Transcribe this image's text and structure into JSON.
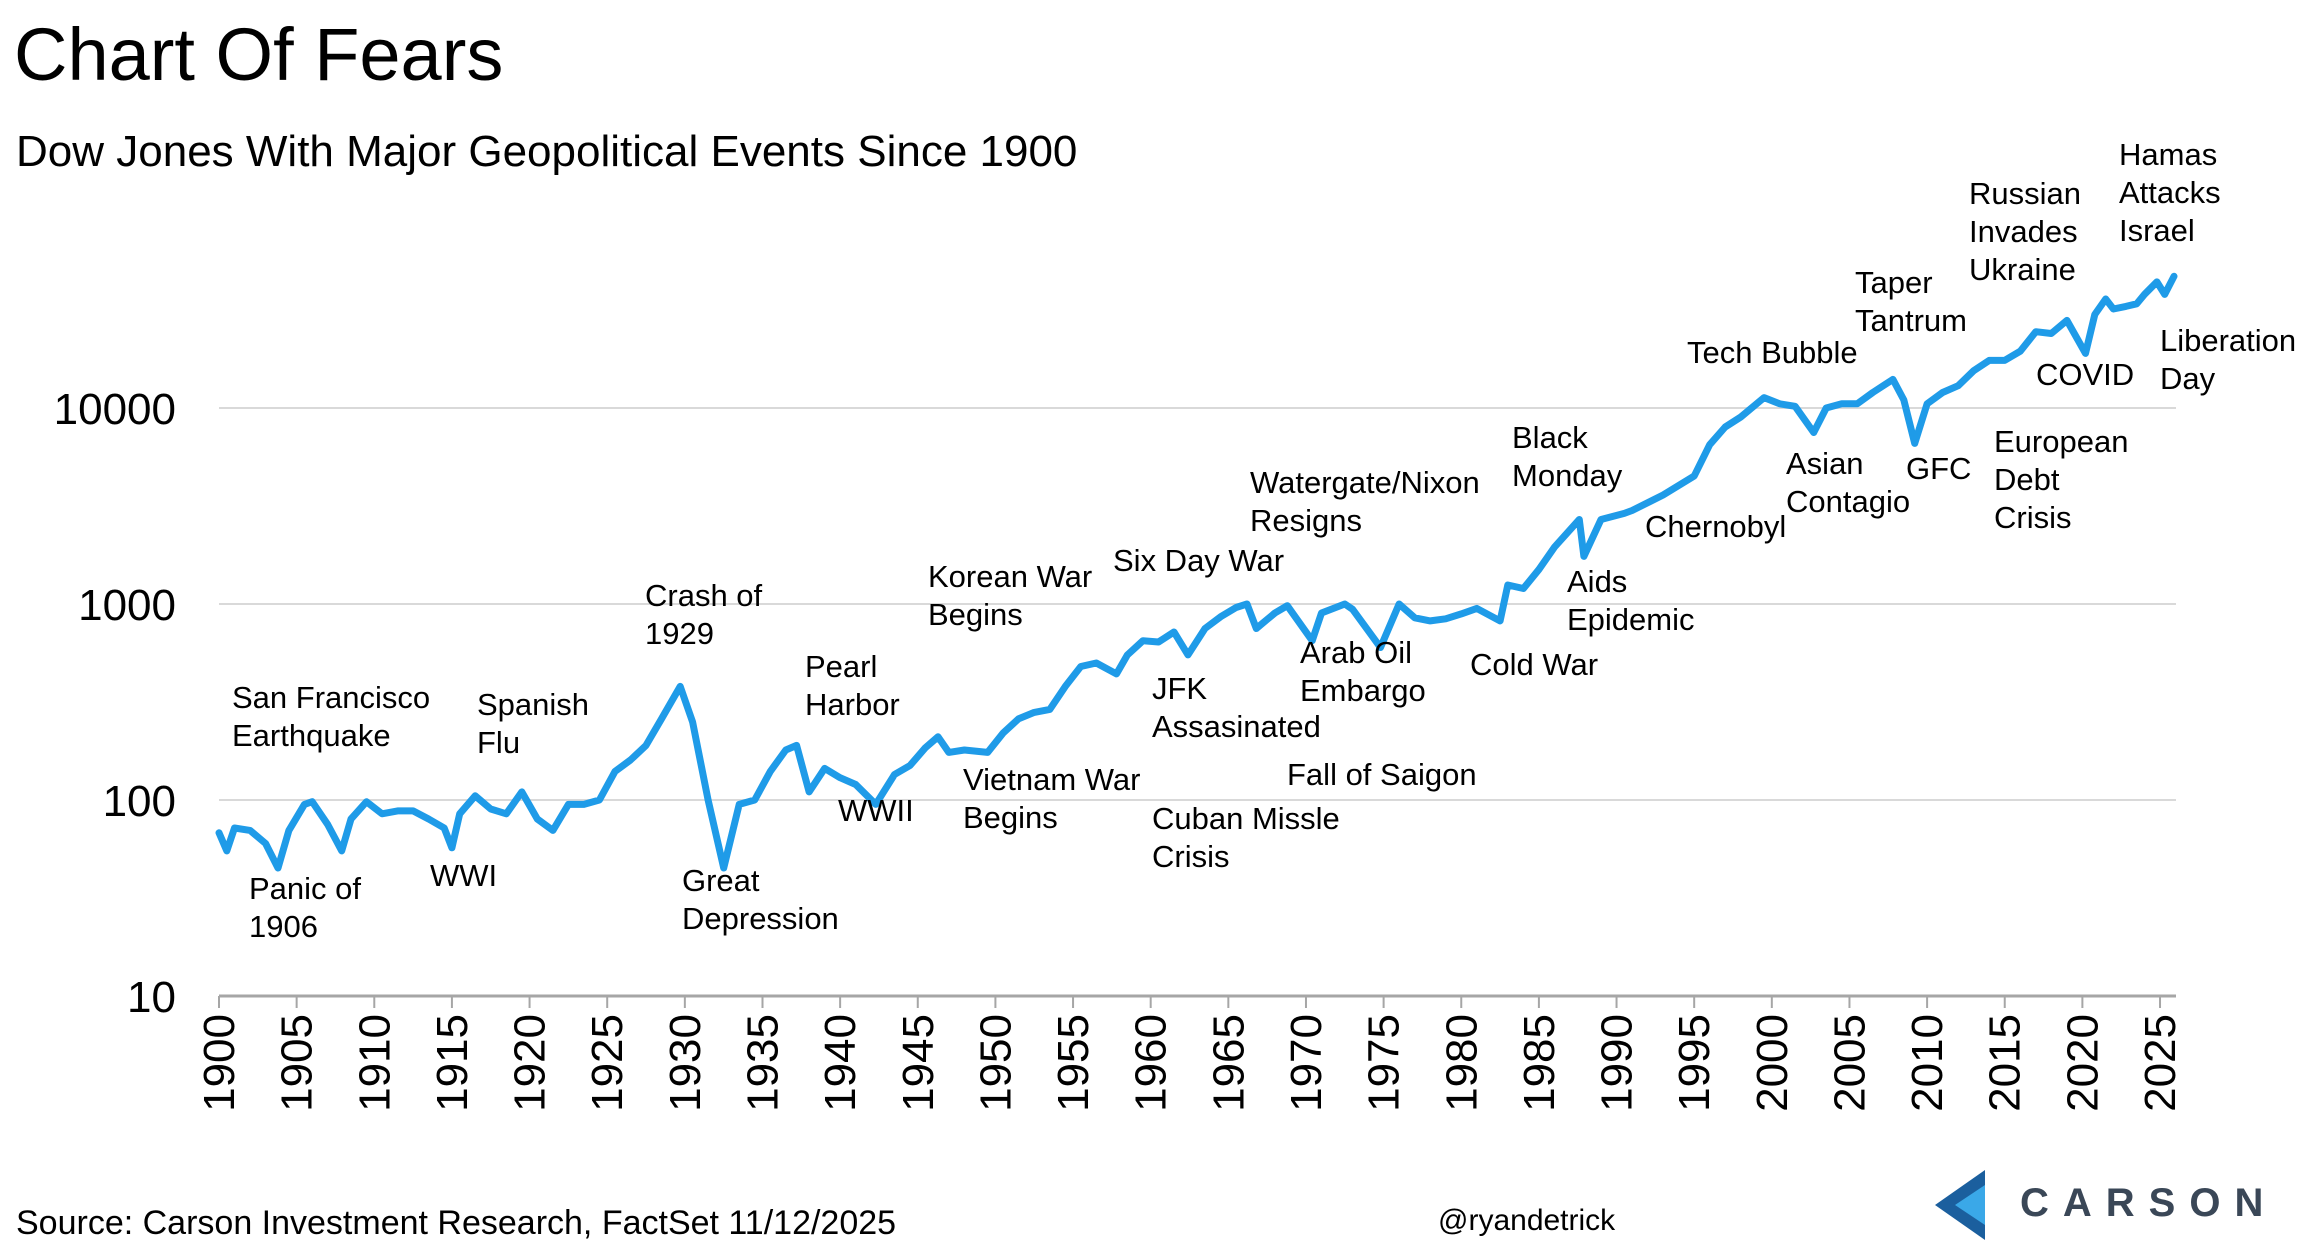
{
  "header": {
    "title": "Chart Of Fears",
    "subtitle": "Dow Jones With Major Geopolitical Events Since 1900"
  },
  "footer": {
    "source": "Source: Carson Investment Research, FactSet 11/12/2025",
    "handle": "@ryandetrick",
    "logo_text": "CARSON"
  },
  "colors": {
    "line": "#1f9be8",
    "grid": "#d9d9d9",
    "logo_dark": "#1b5f9e",
    "logo_light": "#3aa8e8"
  },
  "chart_data": {
    "type": "line",
    "title": "Chart Of Fears",
    "subtitle": "Dow Jones With Major Geopolitical Events Since 1900",
    "xlabel": "",
    "ylabel": "",
    "y_scale": "log",
    "xlim": [
      1900,
      2025.9
    ],
    "ylim": [
      10,
      50000
    ],
    "y_ticks": [
      10,
      100,
      1000,
      10000
    ],
    "y_tick_labels": [
      "10",
      "100",
      "1000",
      "10000"
    ],
    "x_ticks": [
      1900,
      1905,
      1910,
      1915,
      1920,
      1925,
      1930,
      1935,
      1940,
      1945,
      1950,
      1955,
      1960,
      1965,
      1970,
      1975,
      1980,
      1985,
      1990,
      1995,
      2000,
      2005,
      2010,
      2015,
      2020,
      2025
    ],
    "x_tick_labels": [
      "1900",
      "1905",
      "1910",
      "1915",
      "1920",
      "1925",
      "1930",
      "1935",
      "1940",
      "1945",
      "1950",
      "1955",
      "1960",
      "1965",
      "1970",
      "1975",
      "1980",
      "1985",
      "1990",
      "1995",
      "2000",
      "2005",
      "2010",
      "2015",
      "2020",
      "2025"
    ],
    "grid": "horizontal",
    "series": [
      {
        "name": "Dow Jones",
        "x": [
          1900,
          1900.5,
          1901,
          1902,
          1903,
          1903.8,
          1904.5,
          1905.5,
          1906,
          1907,
          1907.9,
          1908.5,
          1909.5,
          1910.5,
          1911.5,
          1912.5,
          1913.5,
          1914.5,
          1915,
          1915.5,
          1916.5,
          1917.5,
          1918.5,
          1919.5,
          1920.5,
          1921.5,
          1922.5,
          1923.5,
          1924.5,
          1925.5,
          1926.5,
          1927.5,
          1928.5,
          1929.7,
          1930.5,
          1931.5,
          1932.5,
          1933.5,
          1934.5,
          1935.5,
          1936.5,
          1937.2,
          1938,
          1939,
          1940,
          1941,
          1942.3,
          1943.5,
          1944.5,
          1945.5,
          1946.3,
          1947,
          1948,
          1949.5,
          1950.5,
          1951.5,
          1952.5,
          1953.5,
          1954.5,
          1955.5,
          1956.5,
          1957.8,
          1958.5,
          1959.5,
          1960.5,
          1961.5,
          1962.4,
          1963.5,
          1964.5,
          1965.5,
          1966.2,
          1966.8,
          1968,
          1968.8,
          1970.4,
          1971,
          1972.5,
          1973,
          1974.8,
          1976,
          1977,
          1978,
          1979,
          1980,
          1981,
          1982.5,
          1983,
          1984,
          1985,
          1986,
          1987.6,
          1987.9,
          1989,
          1990.5,
          1991,
          1993,
          1995,
          1996,
          1997,
          1998,
          1999.5,
          2000.5,
          2001.5,
          2002.7,
          2003.5,
          2004.5,
          2005.5,
          2006.5,
          2007.8,
          2008.5,
          2009.2,
          2010,
          2011,
          2012,
          2013,
          2014,
          2015,
          2016,
          2017,
          2018,
          2019,
          2020.2,
          2020.8,
          2021.5,
          2022,
          2022.8,
          2023.5,
          2024,
          2024.8,
          2025.3,
          2025.9
        ],
        "values": [
          68,
          55,
          72,
          70,
          60,
          45,
          70,
          95,
          98,
          75,
          55,
          80,
          98,
          85,
          88,
          88,
          80,
          72,
          57,
          85,
          105,
          90,
          85,
          110,
          80,
          70,
          95,
          95,
          100,
          140,
          160,
          190,
          260,
          380,
          250,
          100,
          45,
          95,
          100,
          140,
          180,
          190,
          110,
          145,
          130,
          120,
          95,
          135,
          150,
          185,
          210,
          175,
          180,
          175,
          220,
          260,
          280,
          290,
          380,
          480,
          500,
          440,
          550,
          650,
          640,
          720,
          550,
          750,
          860,
          960,
          1000,
          750,
          900,
          980,
          650,
          900,
          1000,
          940,
          600,
          1000,
          850,
          820,
          840,
          890,
          950,
          820,
          1250,
          1200,
          1500,
          1950,
          2700,
          1750,
          2700,
          2900,
          3000,
          3600,
          4500,
          6500,
          8000,
          9000,
          11300,
          10500,
          10200,
          7500,
          10000,
          10500,
          10500,
          12000,
          14000,
          11000,
          6600,
          10500,
          12000,
          13000,
          15500,
          17500,
          17500,
          19500,
          24500,
          24000,
          28000,
          19000,
          30000,
          36000,
          32000,
          33000,
          34000,
          38000,
          44000,
          38000,
          47000
        ]
      }
    ],
    "annotations": [
      {
        "lines": [
          "San Francisco",
          "Earthquake"
        ]
      },
      {
        "lines": [
          "Panic of",
          "1906"
        ]
      },
      {
        "lines": [
          "Spanish",
          "Flu"
        ]
      },
      {
        "lines": [
          "WWI"
        ]
      },
      {
        "lines": [
          "Crash of",
          "1929"
        ]
      },
      {
        "lines": [
          "Great",
          "Depression"
        ]
      },
      {
        "lines": [
          "Pearl",
          "Harbor"
        ]
      },
      {
        "lines": [
          "WWII"
        ]
      },
      {
        "lines": [
          "Korean War",
          "Begins"
        ]
      },
      {
        "lines": [
          "Vietnam War",
          "Begins"
        ]
      },
      {
        "lines": [
          "Six Day War"
        ]
      },
      {
        "lines": [
          "JFK",
          "Assasinated"
        ]
      },
      {
        "lines": [
          "Cuban Missle",
          "Crisis"
        ]
      },
      {
        "lines": [
          "Watergate/Nixon",
          "Resigns"
        ]
      },
      {
        "lines": [
          "Arab Oil",
          "Embargo"
        ]
      },
      {
        "lines": [
          "Fall of Saigon"
        ]
      },
      {
        "lines": [
          "Cold War"
        ]
      },
      {
        "lines": [
          "Black",
          "Monday"
        ]
      },
      {
        "lines": [
          "Aids",
          "Epidemic"
        ]
      },
      {
        "lines": [
          "Chernobyl"
        ]
      },
      {
        "lines": [
          "Tech Bubble"
        ]
      },
      {
        "lines": [
          "Asian",
          "Contagio"
        ]
      },
      {
        "lines": [
          "GFC"
        ]
      },
      {
        "lines": [
          "Taper",
          "Tantrum"
        ]
      },
      {
        "lines": [
          "European",
          "Debt",
          "Crisis"
        ]
      },
      {
        "lines": [
          "COVID"
        ]
      },
      {
        "lines": [
          "Russian",
          "Invades",
          "Ukraine"
        ]
      },
      {
        "lines": [
          "Hamas",
          "Attacks",
          "Israel"
        ]
      },
      {
        "lines": [
          "Liberation",
          "Day"
        ]
      }
    ]
  }
}
